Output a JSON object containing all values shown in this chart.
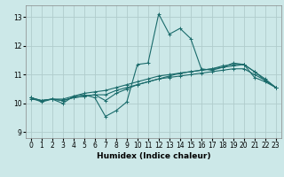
{
  "title": "",
  "xlabel": "Humidex (Indice chaleur)",
  "xlim": [
    -0.5,
    23.5
  ],
  "ylim": [
    8.8,
    13.4
  ],
  "xticks": [
    0,
    1,
    2,
    3,
    4,
    5,
    6,
    7,
    8,
    9,
    10,
    11,
    12,
    13,
    14,
    15,
    16,
    17,
    18,
    19,
    20,
    21,
    22,
    23
  ],
  "yticks": [
    9,
    10,
    11,
    12,
    13
  ],
  "bg_color": "#cce8e8",
  "grid_color": "#b0cccc",
  "line_color": "#1a6b6b",
  "lines": [
    [
      10.2,
      10.1,
      10.15,
      10.0,
      10.25,
      10.3,
      10.2,
      9.55,
      9.75,
      10.05,
      11.35,
      11.4,
      13.1,
      12.4,
      12.6,
      12.25,
      11.2,
      11.15,
      11.25,
      11.4,
      11.35,
      10.9,
      10.75,
      10.55
    ],
    [
      10.2,
      10.05,
      10.15,
      10.1,
      10.2,
      10.25,
      10.3,
      10.1,
      10.35,
      10.5,
      10.65,
      10.75,
      10.85,
      10.95,
      11.05,
      11.1,
      11.15,
      11.2,
      11.3,
      11.35,
      11.35,
      11.1,
      10.8,
      10.55
    ],
    [
      10.15,
      10.1,
      10.15,
      10.1,
      10.2,
      10.25,
      10.3,
      10.3,
      10.45,
      10.55,
      10.65,
      10.75,
      10.85,
      10.9,
      10.95,
      11.0,
      11.05,
      11.1,
      11.15,
      11.2,
      11.2,
      11.0,
      10.8,
      10.55
    ],
    [
      10.2,
      10.1,
      10.15,
      10.15,
      10.25,
      10.35,
      10.4,
      10.45,
      10.55,
      10.65,
      10.75,
      10.85,
      10.95,
      11.0,
      11.05,
      11.1,
      11.15,
      11.2,
      11.25,
      11.3,
      11.35,
      11.1,
      10.85,
      10.55
    ]
  ],
  "tick_labelsize": 5.5,
  "xlabel_fontsize": 6.5
}
